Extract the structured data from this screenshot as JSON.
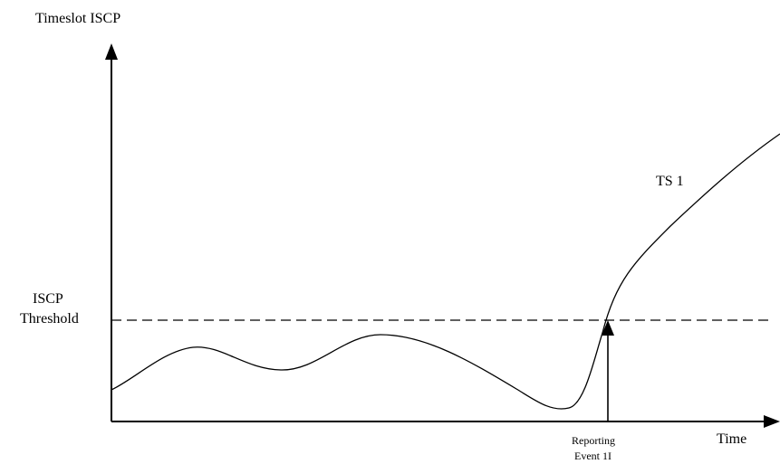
{
  "labels": {
    "y_axis": "Timeslot ISCP",
    "x_axis": "Time",
    "threshold_line1": "ISCP",
    "threshold_line2": "Threshold",
    "curve": "TS 1",
    "event_line1": "Reporting",
    "event_line2": "Event 1I"
  },
  "colors": {
    "stroke": "#000000",
    "background": "#ffffff"
  },
  "line_styles": {
    "threshold": "dashed",
    "axes": "solid"
  },
  "icons": {
    "axis_heads": "arrowhead",
    "event_marker": "arrow-up"
  }
}
